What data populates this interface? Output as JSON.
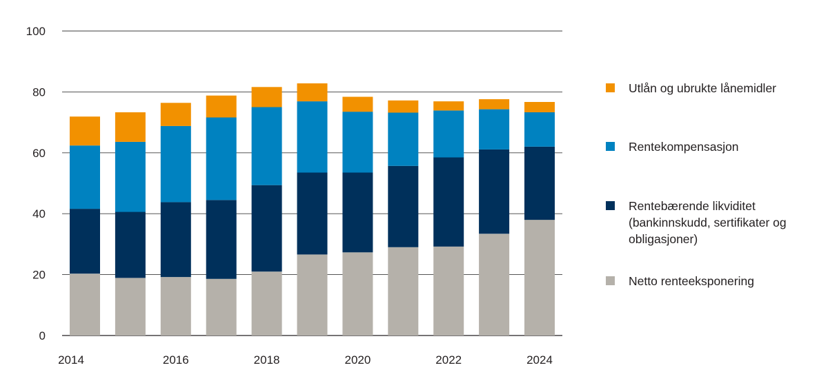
{
  "chart_data": {
    "type": "bar",
    "stacked": true,
    "title": "",
    "xlabel": "",
    "ylabel": "",
    "ylim": [
      0,
      100
    ],
    "yticks": [
      0,
      20,
      40,
      60,
      80,
      100
    ],
    "categories": [
      "2014",
      "2015",
      "2016",
      "2017",
      "2018",
      "2019",
      "2020",
      "2021",
      "2022",
      "2023",
      "2024"
    ],
    "xtick_labels": [
      "2014",
      "",
      "2016",
      "",
      "2018",
      "",
      "2020",
      "",
      "2022",
      "",
      "2024"
    ],
    "series": [
      {
        "name": "Netto renteeksponering",
        "color": "#b5b1aa",
        "values": [
          20.3,
          18.9,
          19.2,
          18.6,
          21.0,
          26.6,
          27.3,
          29.0,
          29.2,
          33.4,
          38.0
        ]
      },
      {
        "name": "Rentebærende likviditet\n(bankinnskudd, sertifikater og\nobligasjoner)",
        "color": "#00305b",
        "values": [
          21.3,
          21.7,
          24.6,
          25.9,
          28.4,
          26.9,
          26.2,
          26.7,
          29.3,
          27.7,
          24.0
        ]
      },
      {
        "name": "Rentekompensasjon",
        "color": "#0082c0",
        "values": [
          20.8,
          23.0,
          25.0,
          27.1,
          25.6,
          23.4,
          20.0,
          17.5,
          15.4,
          13.2,
          11.3
        ]
      },
      {
        "name": "Utlån og ubrukte lånemidler",
        "color": "#f29100",
        "values": [
          9.5,
          9.7,
          7.6,
          7.2,
          6.6,
          5.9,
          4.9,
          4.0,
          3.0,
          3.3,
          3.4
        ]
      }
    ],
    "legend_position": "right",
    "grid": true
  }
}
